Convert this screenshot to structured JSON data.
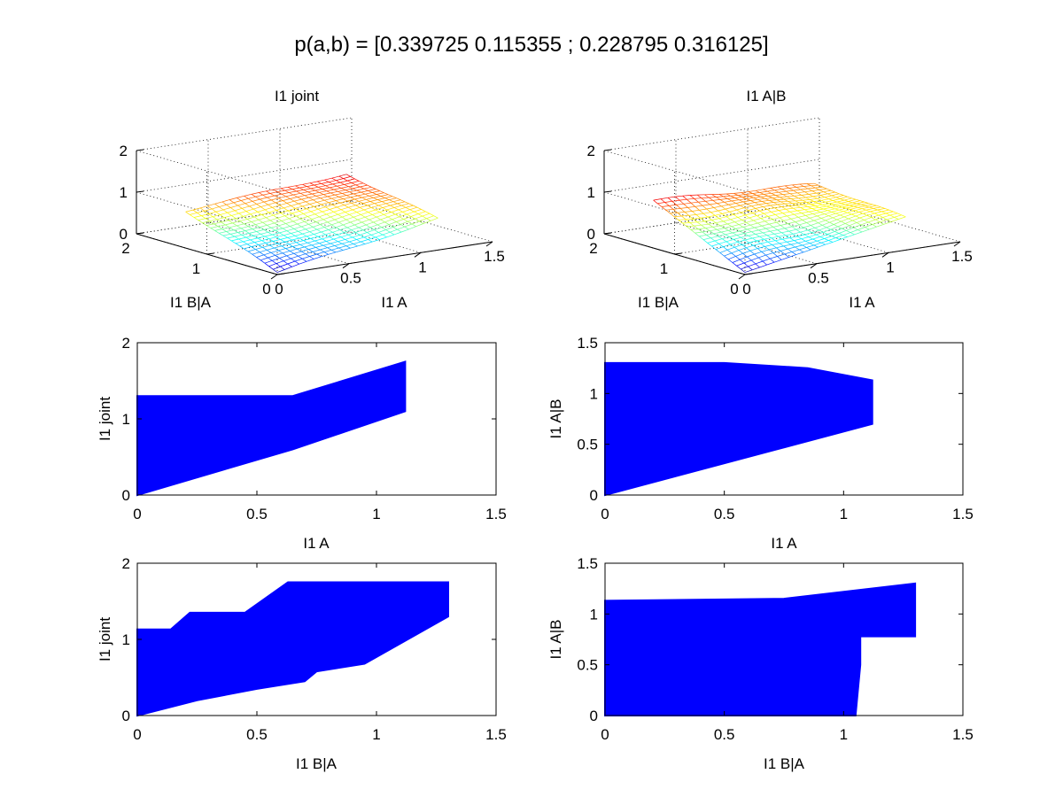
{
  "figure": {
    "title": "p(a,b) = [0.339725 0.115355 ; 0.228795 0.316125]"
  },
  "colors": {
    "scatter": "#0000ff",
    "colormap": "jet"
  },
  "chart_data": [
    {
      "id": "surf-joint",
      "type": "surface",
      "title": "I1 joint",
      "xlabel": "I1 A",
      "ylabel": "I1 B|A",
      "zlabel": "",
      "xlim": [
        0,
        1.5
      ],
      "ylim": [
        0,
        2
      ],
      "zlim": [
        0,
        2
      ],
      "xticks": [
        "0",
        "0.5",
        "1",
        "1.5"
      ],
      "yticks": [
        "0",
        "1",
        "2"
      ],
      "zticks": [
        "0",
        "1",
        "2"
      ],
      "corners": {
        "x0y0": 0.05,
        "x1y0": 0.75,
        "x0y1": 0.9,
        "x1y1": 1.2
      },
      "grid": true
    },
    {
      "id": "surf-agb",
      "type": "surface",
      "title": "I1 A|B",
      "xlabel": "I1 A",
      "ylabel": "I1 B|A",
      "zlabel": "",
      "xlim": [
        0,
        1.5
      ],
      "ylim": [
        0,
        2
      ],
      "zlim": [
        0,
        2
      ],
      "xticks": [
        "0",
        "0.5",
        "1",
        "1.5"
      ],
      "yticks": [
        "0",
        "1",
        "2"
      ],
      "zticks": [
        "0",
        "1",
        "2"
      ],
      "corners": {
        "x0y0": 0.05,
        "x1y0": 0.8,
        "x0y1": 1.15,
        "x1y1": 0.95
      },
      "grid": true
    },
    {
      "id": "scatter-joint-vs-a",
      "type": "scatter",
      "title": "",
      "xlabel": "I1 A",
      "ylabel": "I1 joint",
      "xlim": [
        0,
        1.5
      ],
      "ylim": [
        0,
        2
      ],
      "xticks": [
        0,
        0.5,
        1,
        1.5
      ],
      "yticks": [
        0,
        1,
        2
      ],
      "x_range": [
        0,
        1.12
      ],
      "points": [
        [
          0,
          0
        ],
        [
          0.65,
          0.6
        ],
        [
          1.12,
          1.1
        ],
        [
          1.12,
          1.75
        ],
        [
          0.65,
          1.3
        ],
        [
          0,
          1.3
        ]
      ],
      "grid": false
    },
    {
      "id": "scatter-agb-vs-a",
      "type": "scatter",
      "title": "",
      "xlabel": "I1 A",
      "ylabel": "I1 A|B",
      "xlim": [
        0,
        1.5
      ],
      "ylim": [
        0,
        1.5
      ],
      "xticks": [
        0,
        0.5,
        1,
        1.5
      ],
      "yticks": [
        0,
        0.5,
        1,
        1.5
      ],
      "x_range": [
        0,
        1.12
      ],
      "points": [
        [
          0,
          0
        ],
        [
          1.12,
          0.7
        ],
        [
          1.12,
          1.13
        ],
        [
          0.85,
          1.25
        ],
        [
          0.5,
          1.3
        ],
        [
          0,
          1.3
        ]
      ],
      "grid": false
    },
    {
      "id": "scatter-joint-vs-bga",
      "type": "scatter",
      "title": "",
      "xlabel": "I1 B|A",
      "ylabel": "I1 joint",
      "xlim": [
        0,
        1.5
      ],
      "ylim": [
        0,
        2
      ],
      "xticks": [
        0,
        0.5,
        1,
        1.5
      ],
      "yticks": [
        0,
        1,
        2
      ],
      "x_range": [
        0,
        1.3
      ],
      "points": [
        [
          0,
          0
        ],
        [
          0.25,
          0.2
        ],
        [
          0.5,
          0.35
        ],
        [
          0.7,
          0.45
        ],
        [
          0.75,
          0.58
        ],
        [
          0.95,
          0.68
        ],
        [
          1.3,
          1.3
        ],
        [
          1.3,
          1.75
        ],
        [
          0.63,
          1.75
        ],
        [
          0.45,
          1.35
        ],
        [
          0.22,
          1.35
        ],
        [
          0.14,
          1.13
        ],
        [
          0,
          1.13
        ]
      ],
      "grid": false
    },
    {
      "id": "scatter-agb-vs-bga",
      "type": "scatter",
      "title": "",
      "xlabel": "I1 B|A",
      "ylabel": "I1 A|B",
      "xlim": [
        0,
        1.5
      ],
      "ylim": [
        0,
        1.5
      ],
      "xticks": [
        0,
        0.5,
        1,
        1.5
      ],
      "yticks": [
        0,
        0.5,
        1,
        1.5
      ],
      "x_range": [
        0,
        1.3
      ],
      "points": [
        [
          0,
          0
        ],
        [
          1.05,
          0
        ],
        [
          1.07,
          0.5
        ],
        [
          1.07,
          0.78
        ],
        [
          1.3,
          0.78
        ],
        [
          1.3,
          1.3
        ],
        [
          0.75,
          1.15
        ],
        [
          0,
          1.13
        ]
      ],
      "grid": false
    }
  ]
}
